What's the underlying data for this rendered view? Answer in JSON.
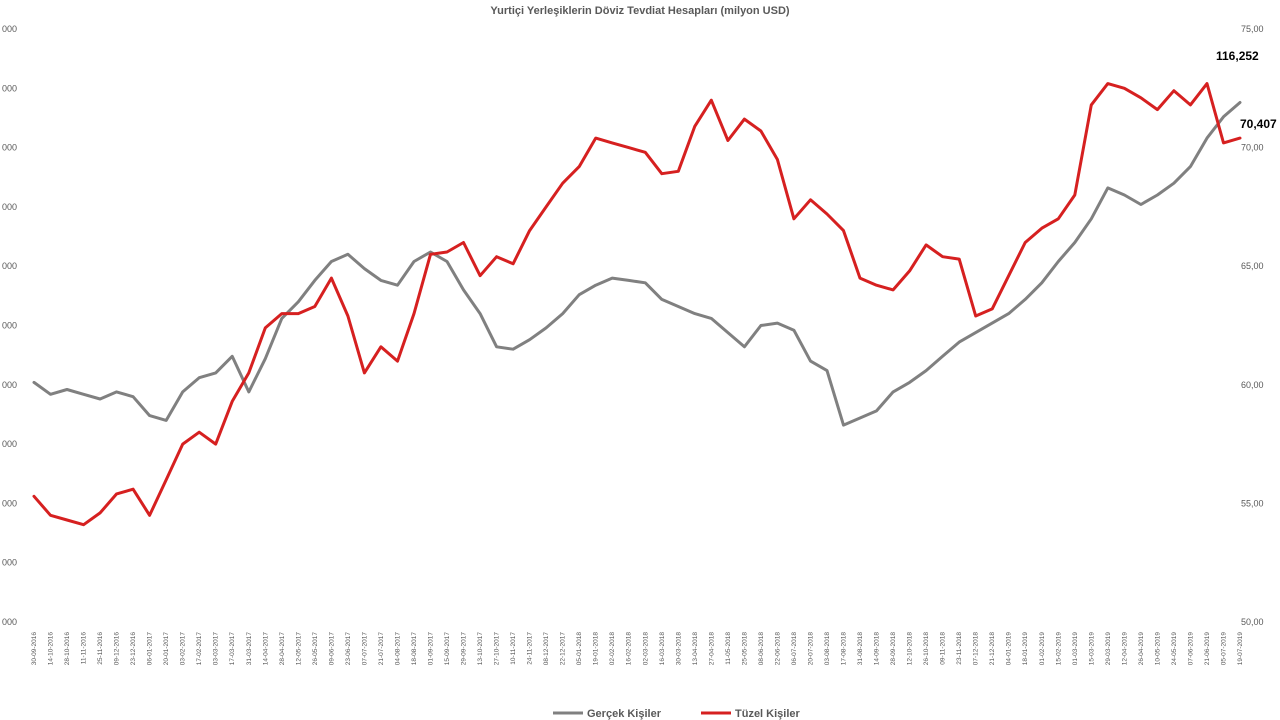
{
  "chart_data": {
    "type": "line",
    "title": "Yurtiçi Yerleşiklerin Döviz Tevdiat Hesapları (milyon USD)",
    "legend_position": "bottom",
    "grid": false,
    "left_axis": {
      "ticks": [
        "000",
        "000",
        "000",
        "000",
        "000",
        "000",
        "000",
        "000",
        "000",
        "000",
        "000"
      ],
      "range_hint": "labels truncated in screenshot"
    },
    "right_axis": {
      "ticks": [
        "75,00",
        "70,00",
        "65,00",
        "60,00",
        "55,00",
        "50,00"
      ],
      "range": [
        50,
        75
      ]
    },
    "x_labels": [
      "30-09-2016",
      "14-10-2016",
      "28-10-2016",
      "11-11-2016",
      "25-11-2016",
      "09-12-2016",
      "23-12-2016",
      "06-01-2017",
      "20-01-2017",
      "03-02-2017",
      "17-02-2017",
      "03-03-2017",
      "17-03-2017",
      "31-03-2017",
      "14-04-2017",
      "28-04-2017",
      "12-05-2017",
      "26-05-2017",
      "09-06-2017",
      "23-06-2017",
      "07-07-2017",
      "21-07-2017",
      "04-08-2017",
      "18-08-2017",
      "01-09-2017",
      "15-09-2017",
      "29-09-2017",
      "13-10-2017",
      "27-10-2017",
      "10-11-2017",
      "24-11-2017",
      "08-12-2017",
      "22-12-2017",
      "05-01-2018",
      "19-01-2018",
      "02-02-2018",
      "16-02-2018",
      "02-03-2018",
      "16-03-2018",
      "30-03-2018",
      "13-04-2018",
      "27-04-2018",
      "11-05-2018",
      "25-05-2018",
      "08-06-2018",
      "22-06-2018",
      "06-07-2018",
      "20-07-2018",
      "03-08-2018",
      "17-08-2018",
      "31-08-2018",
      "14-09-2018",
      "28-09-2018",
      "12-10-2018",
      "26-10-2018",
      "09-11-2018",
      "23-11-2018",
      "07-12-2018",
      "21-12-2018",
      "04-01-2019",
      "18-01-2019",
      "01-02-2019",
      "15-02-2019",
      "01-03-2019",
      "15-03-2019",
      "29-03-2019",
      "12-04-2019",
      "26-04-2019",
      "10-05-2019",
      "24-05-2019",
      "07-06-2019",
      "21-06-2019",
      "05-07-2019",
      "19-07-2019"
    ],
    "series": [
      {
        "name": "Gerçek Kişiler",
        "color": "#808080",
        "axis": "left",
        "end_label": "116,252",
        "values_right_axis_scale": [
          60.1,
          59.6,
          59.8,
          59.6,
          59.4,
          59.7,
          59.5,
          58.7,
          58.5,
          59.7,
          60.3,
          60.5,
          61.2,
          59.7,
          61.1,
          62.8,
          63.5,
          64.4,
          65.2,
          65.5,
          64.9,
          64.4,
          64.2,
          65.2,
          65.6,
          65.2,
          64.0,
          63.0,
          61.6,
          61.5,
          61.9,
          62.4,
          63.0,
          63.8,
          64.2,
          64.5,
          64.4,
          64.3,
          63.6,
          63.3,
          63.0,
          62.8,
          62.2,
          61.6,
          62.5,
          62.6,
          62.3,
          61.0,
          60.6,
          58.3,
          58.6,
          58.9,
          59.7,
          60.1,
          60.6,
          61.2,
          61.8,
          62.2,
          62.6,
          63.0,
          63.6,
          64.3,
          65.2,
          66.0,
          67.0,
          68.3,
          68.0,
          67.6,
          68.0,
          68.5,
          69.2,
          70.4,
          71.3,
          71.9
        ]
      },
      {
        "name": "Tüzel Kişiler",
        "color": "#d62020",
        "axis": "right",
        "end_label": "70,407",
        "values": [
          55.3,
          54.5,
          54.3,
          54.1,
          54.6,
          55.4,
          55.6,
          54.5,
          56.0,
          57.5,
          58.0,
          57.5,
          59.3,
          60.5,
          62.4,
          63.0,
          63.0,
          63.3,
          64.5,
          62.9,
          60.5,
          61.6,
          61.0,
          63.0,
          65.5,
          65.6,
          66.0,
          64.6,
          65.4,
          65.1,
          66.5,
          67.5,
          68.5,
          69.2,
          70.4,
          70.2,
          70.0,
          69.8,
          68.9,
          69.0,
          70.9,
          72.0,
          70.3,
          71.2,
          70.7,
          69.5,
          67.0,
          67.8,
          67.2,
          66.5,
          64.5,
          64.2,
          64.0,
          64.8,
          65.9,
          65.4,
          65.3,
          62.9,
          63.2,
          64.6,
          66.0,
          66.6,
          67.0,
          68.0,
          71.8,
          72.7,
          72.5,
          72.1,
          71.6,
          72.4,
          71.8,
          72.7,
          70.2,
          70.4
        ]
      }
    ]
  }
}
